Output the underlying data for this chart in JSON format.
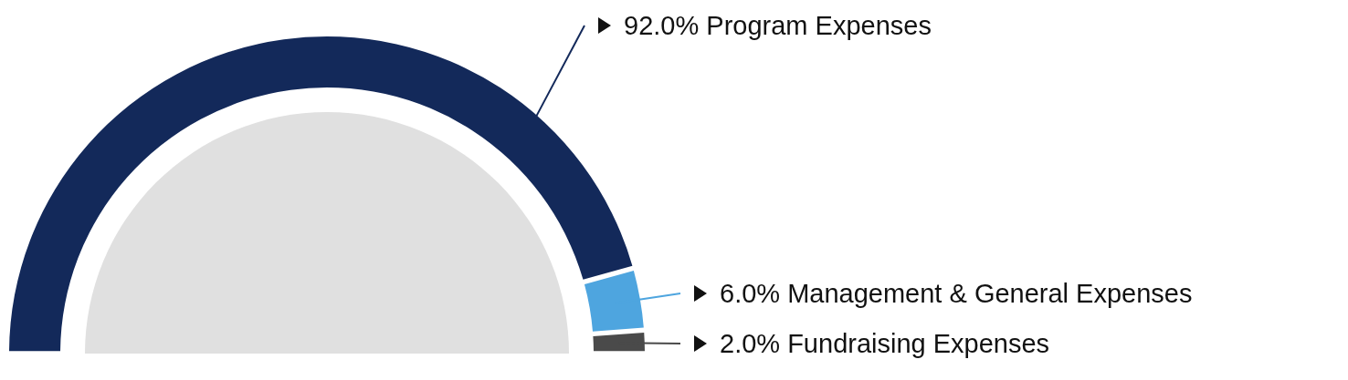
{
  "chart_data": {
    "type": "donut",
    "categories": [
      "Program Expenses",
      "Management & General Expenses",
      "Fundraising Expenses"
    ],
    "values": [
      92.0,
      6.0,
      2.0
    ],
    "colors": [
      "#13295a",
      "#4ea5df",
      "#4a4a4a"
    ],
    "value_labels": [
      "92.0%",
      "6.0%",
      "2.0%"
    ]
  }
}
